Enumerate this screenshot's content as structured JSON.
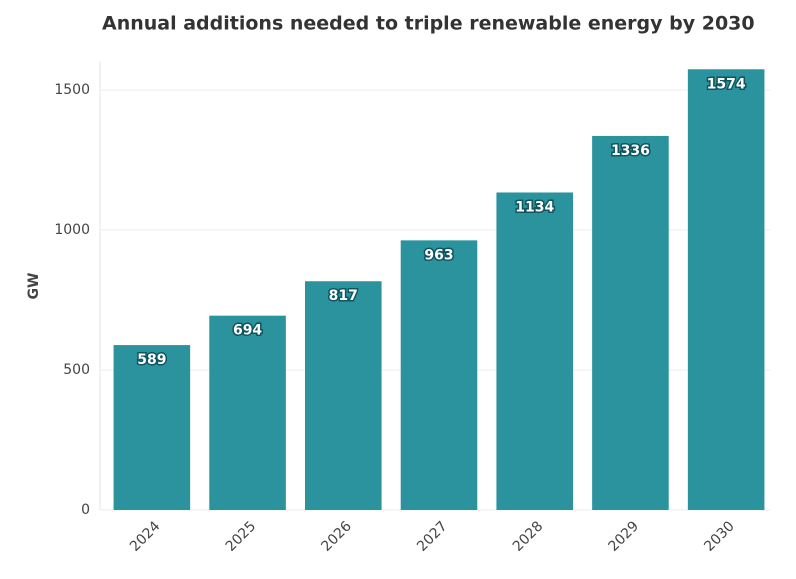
{
  "chart_data": {
    "type": "bar",
    "title": "Annual additions needed to triple renewable energy by 2030",
    "y_label": "GW",
    "categories": [
      "2024",
      "2025",
      "2026",
      "2027",
      "2028",
      "2029",
      "2030"
    ],
    "values": [
      589,
      694,
      817,
      963,
      1134,
      1336,
      1574
    ],
    "color": "#2a939e",
    "ylim": [
      0,
      1600
    ],
    "yticks": [
      0,
      500,
      1000,
      1500
    ],
    "grid": true
  }
}
